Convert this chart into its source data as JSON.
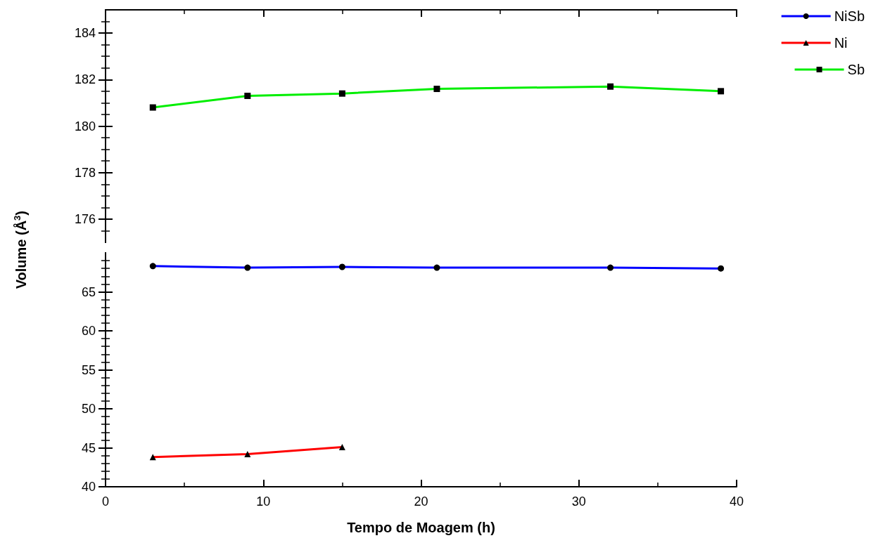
{
  "chart_data": [
    {
      "type": "line",
      "x": [
        3,
        9,
        15,
        21,
        32,
        39
      ],
      "series": [
        {
          "name": "Sb",
          "color": "#00ee00",
          "marker": "square",
          "values": [
            180.8,
            181.3,
            181.4,
            181.6,
            181.7,
            181.5
          ]
        }
      ],
      "xlim": [
        0,
        40
      ],
      "xticks": [
        0,
        10,
        20,
        30,
        40
      ],
      "ylim": [
        175,
        185
      ],
      "yticks": [
        176,
        178,
        180,
        182,
        184
      ],
      "tick_labels": "y",
      "legend": "top right",
      "grid": false
    },
    {
      "type": "line",
      "x": [
        3,
        9,
        15,
        21,
        32,
        39
      ],
      "xlabel": "Tempo de Moagem (h)",
      "ylabel": "Volume (Å$^{3}$)",
      "series": [
        {
          "name": "NiSb",
          "color": "#0000ff",
          "marker": "circle",
          "values": [
            68.3,
            68.1,
            68.2,
            68.1,
            68.1,
            68.0
          ]
        },
        {
          "name": "Ni",
          "color": "#ff0000",
          "marker": "triangle",
          "values": [
            43.8,
            44.2,
            45.1,
            null,
            null,
            null
          ]
        }
      ],
      "xlim": [
        0,
        40
      ],
      "xticks": [
        0,
        10,
        20,
        30,
        40
      ],
      "ylim": [
        40,
        70
      ],
      "yticks": [
        40,
        45,
        50,
        55,
        60,
        65
      ],
      "legend": "top right",
      "grid": false
    }
  ]
}
